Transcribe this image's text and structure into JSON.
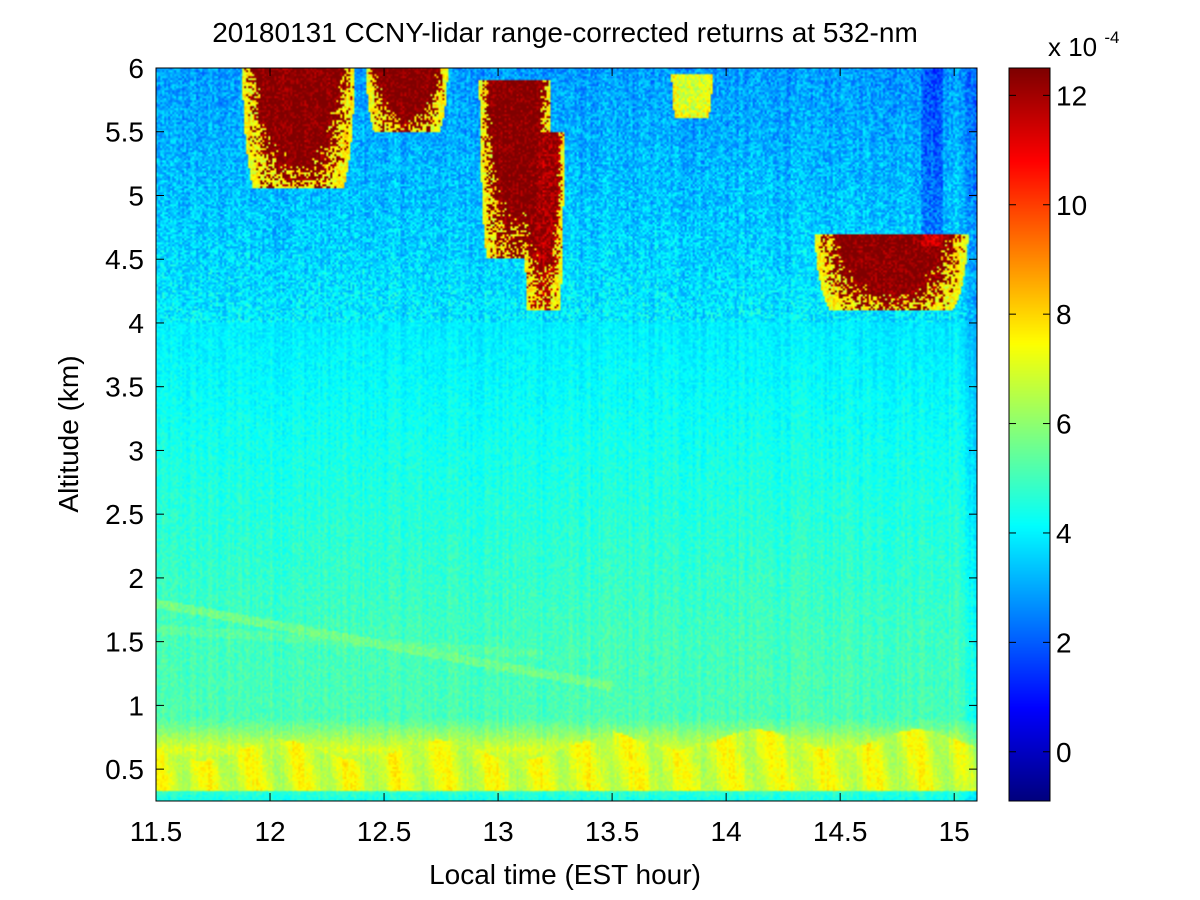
{
  "chart_data": {
    "type": "heatmap",
    "title": "20180131 CCNY-lidar range-corrected returns at 532-nm",
    "xlabel": "Local time (EST hour)",
    "ylabel": "Altitude (km)",
    "xlim": [
      11.5,
      15.1
    ],
    "ylim": [
      0.25,
      6.0
    ],
    "x_ticks": [
      11.5,
      12,
      12.5,
      13,
      13.5,
      14,
      14.5,
      15
    ],
    "x_tick_labels": [
      "11.5",
      "12",
      "12.5",
      "13",
      "13.5",
      "14",
      "14.5",
      "15"
    ],
    "y_ticks": [
      0.5,
      1,
      1.5,
      2,
      2.5,
      3,
      3.5,
      4,
      4.5,
      5,
      5.5,
      6
    ],
    "y_tick_labels": [
      "0.5",
      "1",
      "1.5",
      "2",
      "2.5",
      "3",
      "3.5",
      "4",
      "4.5",
      "5",
      "5.5",
      "6"
    ],
    "colorbar": {
      "colormap": "jet",
      "clim": [
        -0.9,
        12.5
      ],
      "ticks": [
        0,
        2,
        4,
        6,
        8,
        10,
        12
      ],
      "tick_labels": [
        "0",
        "2",
        "4",
        "6",
        "8",
        "10",
        "12"
      ],
      "multiplier_base": "x 10",
      "multiplier_exponent": "-4"
    },
    "background_profile": {
      "altitude_km": [
        0.25,
        0.65,
        0.9,
        1.5,
        2.0,
        3.0,
        4.0,
        4.5,
        5.0,
        6.0
      ],
      "value_1e-4": [
        4.3,
        7.0,
        5.1,
        5.0,
        4.8,
        4.4,
        3.9,
        3.6,
        3.3,
        2.8
      ]
    },
    "boundary_layer": {
      "top_km": 0.65,
      "value_1e-4": 7.0
    },
    "aerosol_layers": [
      {
        "time_start": 11.5,
        "time_end": 13.5,
        "altitude_start_km": 1.8,
        "altitude_end_km": 1.15,
        "value_1e-4": 5.6
      },
      {
        "time_start": 11.5,
        "time_end": 13.2,
        "altitude_start_km": 1.6,
        "altitude_end_km": 1.4,
        "value_1e-4": 5.3
      }
    ],
    "cloud_regions": [
      {
        "time_range": [
          11.85,
          12.4
        ],
        "altitude_range_km": [
          5.05,
          6.0
        ],
        "value_1e-4": 12.5
      },
      {
        "time_range": [
          12.4,
          12.8
        ],
        "altitude_range_km": [
          5.5,
          6.0
        ],
        "value_1e-4": 12.5
      },
      {
        "time_range": [
          12.9,
          13.25
        ],
        "altitude_range_km": [
          4.5,
          5.9
        ],
        "value_1e-4": 12.5
      },
      {
        "time_range": [
          13.1,
          13.3
        ],
        "altitude_range_km": [
          4.1,
          5.5
        ],
        "value_1e-4": 12.0
      },
      {
        "time_range": [
          14.35,
          15.1
        ],
        "altitude_range_km": [
          4.1,
          4.7
        ],
        "value_1e-4": 12.5
      },
      {
        "time_range": [
          13.75,
          13.95
        ],
        "altitude_range_km": [
          5.6,
          5.95
        ],
        "value_1e-4": 7.0
      }
    ]
  }
}
